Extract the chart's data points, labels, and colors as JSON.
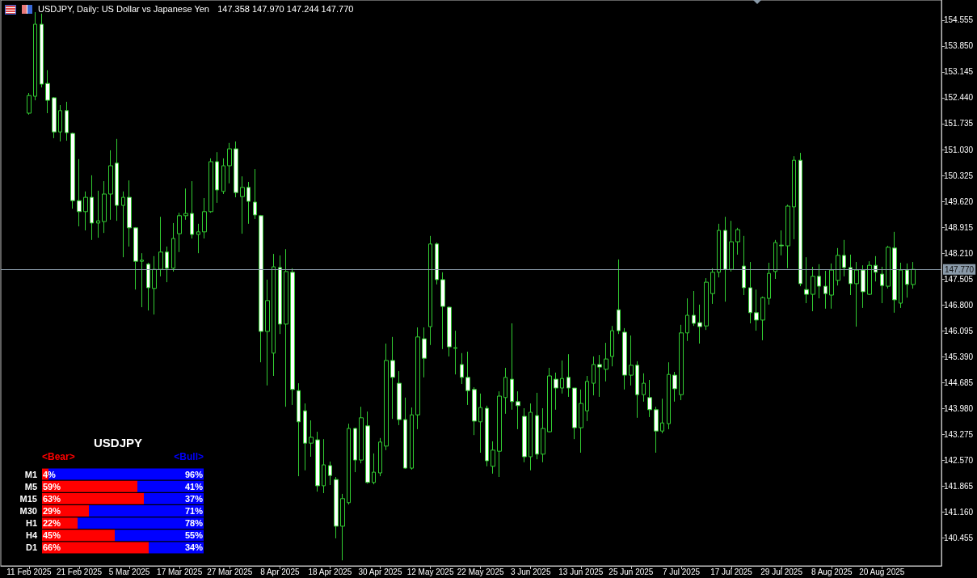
{
  "chart_data": [
    {
      "type": "candlestick",
      "title": "USDJPY, Daily: US Dollar vs Japanese Yen",
      "subtitle": "147.358 147.970 147.244 147.770",
      "categories": [
        "11 Feb 2025",
        null,
        null,
        null,
        null,
        null,
        null,
        null,
        "21 Feb 2025",
        null,
        null,
        null,
        null,
        null,
        null,
        null,
        "5 Mar 2025",
        null,
        null,
        null,
        null,
        null,
        null,
        null,
        "17 Mar 2025",
        null,
        null,
        null,
        null,
        null,
        null,
        null,
        "27 Mar 2025",
        null,
        null,
        null,
        null,
        null,
        null,
        null,
        "8 Apr 2025",
        null,
        null,
        null,
        null,
        null,
        null,
        null,
        "18 Apr 2025",
        null,
        null,
        null,
        null,
        null,
        null,
        null,
        "30 Apr 2025",
        null,
        null,
        null,
        null,
        null,
        null,
        null,
        "12 May 2025",
        null,
        null,
        null,
        null,
        null,
        null,
        null,
        "22 May 2025",
        null,
        null,
        null,
        null,
        null,
        null,
        null,
        "3 Jun 2025",
        null,
        null,
        null,
        null,
        null,
        null,
        null,
        "13 Jun 2025",
        null,
        null,
        null,
        null,
        null,
        null,
        null,
        "25 Jun 2025",
        null,
        null,
        null,
        null,
        null,
        null,
        null,
        "7 Jul 2025",
        null,
        null,
        null,
        null,
        null,
        null,
        null,
        "17 Jul 2025",
        null,
        null,
        null,
        null,
        null,
        null,
        null,
        "29 Jul 2025",
        null,
        null,
        null,
        null,
        null,
        null,
        null,
        "8 Aug 2025",
        null,
        null,
        null,
        null,
        null,
        null,
        null,
        "20 Aug 2025",
        null,
        null,
        null,
        null,
        null
      ],
      "ohlc": [
        [
          152.02,
          152.57,
          151.98,
          152.5
        ],
        [
          152.48,
          154.77,
          152.37,
          154.44
        ],
        [
          154.44,
          154.73,
          152.72,
          152.81
        ],
        [
          152.83,
          153.19,
          152.02,
          152.37
        ],
        [
          152.44,
          152.46,
          151.34,
          151.51
        ],
        [
          151.51,
          152.24,
          151.25,
          152.09
        ],
        [
          152.09,
          152.33,
          151.27,
          151.49
        ],
        [
          151.47,
          151.49,
          149.42,
          149.64
        ],
        [
          149.64,
          150.77,
          148.94,
          149.34
        ],
        [
          149.34,
          149.89,
          148.83,
          149.73
        ],
        [
          149.73,
          150.33,
          148.57,
          149.03
        ],
        [
          149.03,
          149.91,
          148.63,
          149.09
        ],
        [
          149.07,
          150.17,
          148.76,
          149.82
        ],
        [
          149.82,
          151.01,
          149.12,
          150.59
        ],
        [
          150.66,
          151.32,
          149.09,
          149.51
        ],
        [
          149.51,
          149.89,
          148.1,
          149.73
        ],
        [
          149.73,
          150.19,
          148.39,
          148.9
        ],
        [
          148.9,
          148.92,
          147.22,
          147.99
        ],
        [
          147.99,
          148.21,
          146.74,
          148.02
        ],
        [
          147.91,
          147.95,
          146.65,
          147.27
        ],
        [
          147.25,
          148.13,
          146.54,
          147.77
        ],
        [
          147.77,
          149.2,
          147.58,
          148.24
        ],
        [
          148.24,
          148.39,
          147.42,
          147.8
        ],
        [
          147.8,
          149.03,
          147.71,
          148.61
        ],
        [
          148.74,
          149.31,
          148.24,
          149.23
        ],
        [
          149.23,
          149.97,
          149.12,
          149.29
        ],
        [
          149.29,
          150.17,
          148.61,
          148.72
        ],
        [
          148.72,
          149.01,
          148.21,
          148.79
        ],
        [
          148.79,
          149.71,
          148.61,
          149.34
        ],
        [
          149.34,
          150.79,
          149.31,
          150.7
        ],
        [
          150.7,
          150.96,
          149.58,
          149.93
        ],
        [
          149.89,
          150.79,
          149.82,
          150.59
        ],
        [
          150.59,
          151.21,
          150.11,
          151.05
        ],
        [
          151.05,
          151.25,
          149.73,
          149.86
        ],
        [
          149.75,
          150.3,
          148.74,
          150.0
        ],
        [
          150.0,
          150.15,
          149.01,
          149.62
        ],
        [
          149.6,
          150.5,
          149.14,
          149.25
        ],
        [
          149.23,
          149.25,
          145.24,
          146.08
        ],
        [
          146.08,
          147.49,
          144.61,
          146.92
        ],
        [
          145.49,
          148.19,
          144.87,
          147.84
        ],
        [
          147.82,
          148.15,
          146.01,
          146.28
        ],
        [
          146.28,
          148.32,
          144.03,
          147.71
        ],
        [
          147.69,
          147.8,
          144.08,
          144.5
        ],
        [
          144.47,
          144.67,
          142.14,
          143.62
        ],
        [
          143.92,
          144.12,
          142.3,
          143.04
        ],
        [
          143.04,
          143.66,
          142.67,
          143.2
        ],
        [
          143.13,
          143.35,
          141.72,
          141.88
        ],
        [
          141.88,
          143.15,
          141.68,
          142.45
        ],
        [
          142.43,
          142.54,
          141.9,
          142.16
        ],
        [
          142.05,
          142.12,
          140.45,
          140.78
        ],
        [
          140.78,
          141.66,
          139.85,
          141.53
        ],
        [
          141.42,
          143.57,
          141.37,
          143.44
        ],
        [
          143.44,
          143.46,
          142.25,
          142.58
        ],
        [
          142.58,
          144.03,
          142.49,
          143.73
        ],
        [
          143.51,
          143.9,
          141.94,
          141.97
        ],
        [
          141.97,
          142.76,
          141.92,
          142.25
        ],
        [
          142.23,
          143.18,
          142.14,
          143.07
        ],
        [
          142.96,
          145.75,
          142.85,
          145.29
        ],
        [
          145.29,
          145.93,
          143.7,
          144.83
        ],
        [
          144.67,
          145.0,
          143.53,
          143.68
        ],
        [
          143.68,
          144.28,
          142.34,
          142.36
        ],
        [
          142.36,
          144.01,
          142.32,
          143.81
        ],
        [
          143.81,
          146.19,
          143.42,
          145.93
        ],
        [
          145.88,
          146.19,
          144.83,
          145.35
        ],
        [
          146.21,
          148.68,
          145.71,
          148.46
        ],
        [
          148.46,
          148.5,
          147.36,
          147.49
        ],
        [
          147.49,
          147.69,
          145.6,
          146.76
        ],
        [
          146.74,
          146.76,
          145.4,
          145.66
        ],
        [
          145.62,
          146.1,
          144.91,
          145.64
        ],
        [
          145.18,
          145.49,
          144.65,
          144.83
        ],
        [
          144.83,
          145.53,
          144.08,
          144.47
        ],
        [
          144.5,
          144.56,
          143.26,
          143.64
        ],
        [
          143.62,
          144.39,
          142.78,
          144.01
        ],
        [
          143.99,
          144.06,
          142.41,
          142.56
        ],
        [
          142.41,
          143.09,
          142.21,
          142.85
        ],
        [
          142.82,
          144.45,
          142.12,
          144.32
        ],
        [
          144.28,
          145.09,
          143.84,
          144.83
        ],
        [
          144.78,
          146.3,
          143.95,
          144.17
        ],
        [
          144.17,
          144.45,
          143.42,
          144.06
        ],
        [
          143.77,
          143.99,
          142.52,
          142.67
        ],
        [
          142.67,
          144.12,
          142.3,
          143.88
        ],
        [
          143.79,
          144.41,
          142.6,
          142.74
        ],
        [
          142.74,
          143.99,
          142.52,
          143.44
        ],
        [
          143.35,
          145.09,
          143.33,
          144.87
        ],
        [
          144.78,
          144.96,
          143.95,
          144.54
        ],
        [
          144.54,
          145.29,
          144.39,
          144.8
        ],
        [
          144.83,
          145.46,
          144.3,
          144.54
        ],
        [
          144.54,
          144.54,
          143.15,
          143.46
        ],
        [
          143.46,
          144.5,
          142.78,
          144.12
        ],
        [
          143.92,
          144.87,
          143.64,
          144.72
        ],
        [
          144.67,
          145.4,
          144.34,
          145.18
        ],
        [
          145.18,
          145.44,
          144.3,
          145.11
        ],
        [
          145.05,
          145.77,
          144.72,
          145.33
        ],
        [
          145.4,
          146.23,
          145.13,
          146.1
        ],
        [
          146.67,
          148.04,
          146.01,
          146.1
        ],
        [
          146.06,
          146.17,
          144.5,
          144.89
        ],
        [
          144.89,
          145.97,
          144.61,
          145.16
        ],
        [
          145.16,
          145.27,
          143.73,
          144.36
        ],
        [
          144.36,
          144.94,
          144.17,
          144.67
        ],
        [
          144.28,
          144.76,
          143.75,
          143.95
        ],
        [
          143.95,
          144.03,
          142.78,
          143.37
        ],
        [
          143.37,
          144.25,
          143.31,
          143.59
        ],
        [
          143.57,
          145.24,
          143.42,
          144.91
        ],
        [
          144.89,
          144.98,
          144.17,
          144.52
        ],
        [
          144.36,
          146.26,
          144.21,
          146.04
        ],
        [
          146.04,
          146.98,
          145.82,
          146.52
        ],
        [
          146.52,
          147.18,
          146.23,
          146.3
        ],
        [
          146.32,
          146.81,
          145.75,
          146.21
        ],
        [
          146.23,
          147.53,
          146.12,
          147.42
        ],
        [
          147.11,
          147.8,
          146.83,
          147.69
        ],
        [
          147.69,
          149.01,
          147.55,
          148.83
        ],
        [
          148.83,
          149.2,
          146.89,
          147.77
        ],
        [
          147.77,
          149.09,
          147.71,
          148.52
        ],
        [
          148.52,
          148.9,
          148.17,
          148.85
        ],
        [
          147.86,
          148.68,
          147.07,
          147.27
        ],
        [
          147.27,
          147.97,
          146.3,
          146.59
        ],
        [
          146.59,
          147.22,
          146.1,
          146.39
        ],
        [
          146.39,
          147.03,
          145.84,
          147.0
        ],
        [
          146.98,
          147.95,
          146.81,
          147.66
        ],
        [
          147.71,
          148.57,
          147.51,
          148.5
        ],
        [
          148.43,
          148.83,
          148.15,
          148.41
        ],
        [
          148.41,
          149.53,
          147.8,
          149.49
        ],
        [
          149.47,
          150.85,
          148.59,
          150.74
        ],
        [
          150.74,
          150.94,
          147.31,
          147.38
        ],
        [
          147.22,
          148.1,
          146.85,
          147.09
        ],
        [
          147.09,
          147.84,
          146.63,
          147.58
        ],
        [
          147.58,
          147.91,
          146.98,
          147.31
        ],
        [
          147.31,
          147.73,
          146.7,
          147.11
        ],
        [
          147.07,
          147.93,
          146.7,
          147.75
        ],
        [
          147.47,
          148.35,
          147.33,
          148.15
        ],
        [
          148.15,
          148.57,
          147.58,
          147.82
        ],
        [
          147.82,
          148.17,
          147.07,
          147.38
        ],
        [
          147.38,
          147.97,
          146.21,
          147.75
        ],
        [
          147.75,
          147.88,
          146.72,
          147.16
        ],
        [
          147.09,
          147.99,
          147.07,
          147.88
        ],
        [
          147.88,
          148.13,
          147.44,
          147.69
        ],
        [
          147.64,
          147.84,
          146.85,
          147.33
        ],
        [
          147.31,
          148.41,
          147.25,
          148.37
        ],
        [
          148.35,
          148.79,
          146.59,
          146.94
        ],
        [
          146.85,
          147.95,
          146.72,
          147.75
        ],
        [
          147.75,
          147.93,
          147.0,
          147.36
        ],
        [
          147.358,
          147.97,
          147.244,
          147.77
        ]
      ],
      "color": "#32cd32",
      "ylim": [
        139.7,
        155.1
      ],
      "yticks": [
        140.455,
        {
          "value": 141.16,
          "label": "141.160"
        },
        141.865,
        {
          "value": 142.57,
          "label": "142.570"
        },
        143.275,
        {
          "value": 143.98,
          "label": "143.980"
        },
        144.685,
        {
          "value": 145.39,
          "label": "145.390"
        },
        146.095,
        {
          "value": 146.8,
          "label": "146.800"
        },
        147.505,
        {
          "value": 148.21,
          "label": "148.210"
        },
        148.915,
        {
          "value": 149.62,
          "label": "149.620"
        },
        150.325,
        {
          "value": 151.03,
          "label": "151.030"
        },
        151.735,
        {
          "value": 152.44,
          "label": "152.440"
        },
        153.145,
        {
          "value": 153.85,
          "label": "153.850"
        },
        154.555
      ],
      "ref_lines": [
        {
          "axis": "y",
          "value": 147.77,
          "label": "147.770",
          "color": "#8a9aa9"
        }
      ]
    },
    {
      "type": "bar",
      "title": "USDJPY",
      "orientation": "horizontal",
      "stacked": true,
      "categories": [
        "M1",
        "M5",
        "M15",
        "M30",
        "H1",
        "H4",
        "D1"
      ],
      "series": [
        {
          "name": "<Bear>",
          "color": "#ff0000",
          "values": [
            4,
            59,
            63,
            29,
            22,
            45,
            66
          ],
          "value_labels": [
            "4%",
            "59%",
            "63%",
            "29%",
            "22%",
            "45%",
            "66%"
          ]
        },
        {
          "name": "<Bull>",
          "color": "#0000ff",
          "values": [
            96,
            41,
            37,
            71,
            78,
            55,
            34
          ],
          "value_labels": [
            "96%",
            "41%",
            "37%",
            "71%",
            "78%",
            "55%",
            "34%"
          ]
        }
      ],
      "legend": "top",
      "tick_labels": "y"
    }
  ]
}
